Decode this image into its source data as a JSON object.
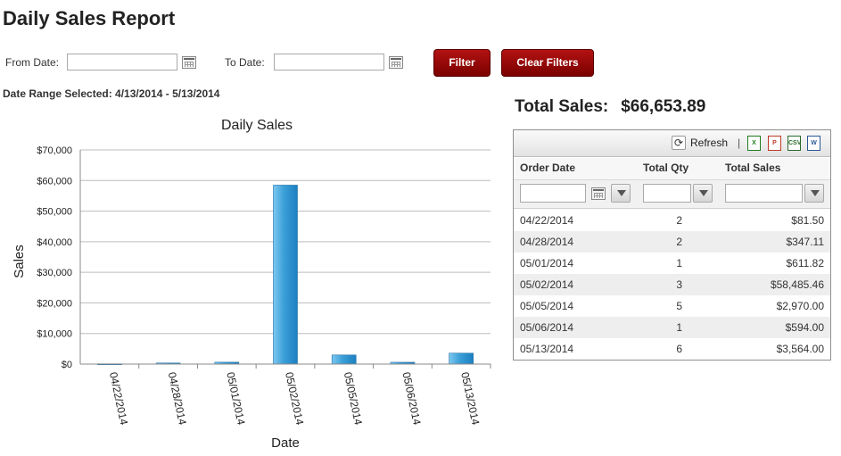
{
  "page": {
    "title": "Daily Sales Report"
  },
  "filters": {
    "from_label": "From Date:",
    "from_value": "",
    "to_label": "To Date:",
    "to_value": "",
    "filter_button": "Filter",
    "clear_button": "Clear Filters",
    "range_text": "Date Range Selected: 4/13/2014 - 5/13/2014"
  },
  "total": {
    "label": "Total Sales:",
    "value": "$66,653.89"
  },
  "colors": {
    "button": "#8b0000",
    "bar": "#3a9ed8",
    "bar_edge": "#1f6ea8"
  },
  "chart_data": {
    "type": "bar",
    "title": "Daily Sales",
    "xlabel": "Date",
    "ylabel": "Sales",
    "ylim": [
      0,
      70000
    ],
    "yticks": [
      0,
      10000,
      20000,
      30000,
      40000,
      50000,
      60000,
      70000
    ],
    "ytick_labels": [
      "$0",
      "$10,000",
      "$20,000",
      "$30,000",
      "$40,000",
      "$50,000",
      "$60,000",
      "$70,000"
    ],
    "grid": true,
    "categories": [
      "04/22/2014",
      "04/28/2014",
      "05/01/2014",
      "05/02/2014",
      "05/05/2014",
      "05/06/2014",
      "05/13/2014"
    ],
    "values": [
      81.5,
      347.11,
      611.82,
      58485.46,
      2970.0,
      594.0,
      3564.0
    ]
  },
  "grid": {
    "toolbar": {
      "refresh_label": "Refresh",
      "separator": "|",
      "export_icons": [
        "excel-icon",
        "pdf-icon",
        "csv-icon",
        "word-icon"
      ],
      "export_texts": [
        "X",
        "P",
        "CSV",
        "W"
      ],
      "export_colors": [
        "#1e7a1e",
        "#c0392b",
        "#2a6a2a",
        "#2b5797"
      ]
    },
    "columns": [
      "Order Date",
      "Total Qty",
      "Total Sales"
    ],
    "filter_values": [
      "",
      "",
      ""
    ],
    "rows": [
      {
        "date": "04/22/2014",
        "qty": "2",
        "sales": "$81.50"
      },
      {
        "date": "04/28/2014",
        "qty": "2",
        "sales": "$347.11"
      },
      {
        "date": "05/01/2014",
        "qty": "1",
        "sales": "$611.82"
      },
      {
        "date": "05/02/2014",
        "qty": "3",
        "sales": "$58,485.46"
      },
      {
        "date": "05/05/2014",
        "qty": "5",
        "sales": "$2,970.00"
      },
      {
        "date": "05/06/2014",
        "qty": "1",
        "sales": "$594.00"
      },
      {
        "date": "05/13/2014",
        "qty": "6",
        "sales": "$3,564.00"
      }
    ]
  }
}
